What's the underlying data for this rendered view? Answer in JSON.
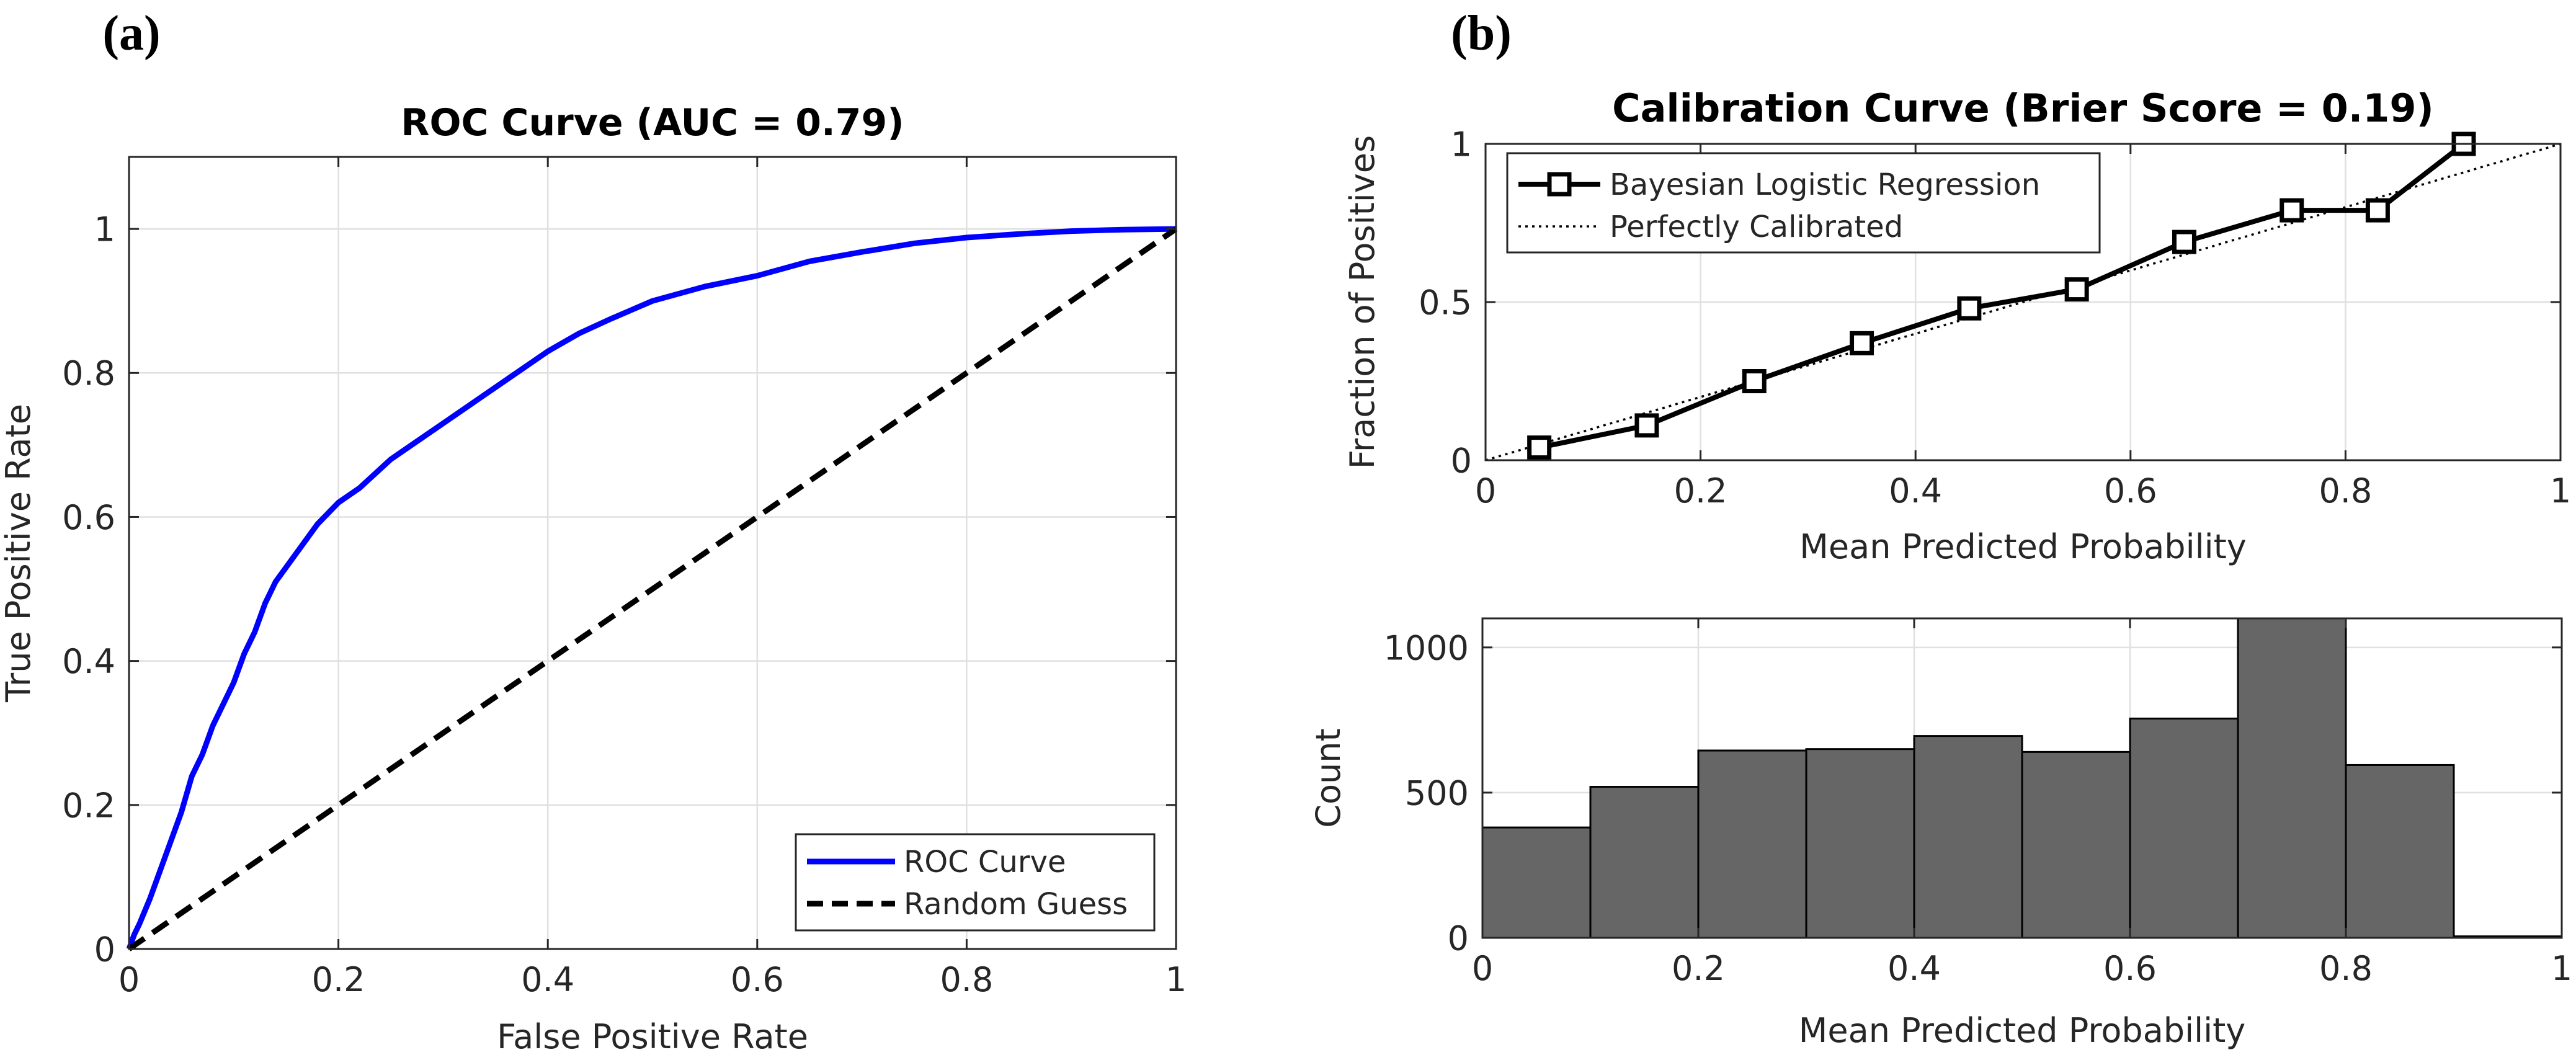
{
  "panels": {
    "a_label": "(a)",
    "b_label": "(b)"
  },
  "chart_data": [
    {
      "id": "roc",
      "type": "line",
      "title": "ROC Curve (AUC = 0.79)",
      "xlabel": "False Positive Rate",
      "ylabel": "True Positive Rate",
      "xlim": [
        0,
        1
      ],
      "ylim": [
        0,
        1.1
      ],
      "xticks": [
        0,
        0.2,
        0.4,
        0.6,
        0.8,
        1
      ],
      "yticks": [
        0,
        0.2,
        0.4,
        0.6,
        0.8,
        1
      ],
      "xtick_labels": [
        "0",
        "0.2",
        "0.4",
        "0.6",
        "0.8",
        "1"
      ],
      "ytick_labels": [
        "0",
        "0.2",
        "0.4",
        "0.6",
        "0.8",
        "1"
      ],
      "grid": true,
      "legend_position": "bottom-right",
      "series": [
        {
          "name": "ROC Curve",
          "color": "#0000ff",
          "style": "solid",
          "x": [
            0,
            0.005,
            0.01,
            0.02,
            0.03,
            0.04,
            0.05,
            0.06,
            0.07,
            0.08,
            0.09,
            0.1,
            0.11,
            0.12,
            0.13,
            0.14,
            0.15,
            0.16,
            0.18,
            0.2,
            0.22,
            0.25,
            0.28,
            0.3,
            0.33,
            0.36,
            0.4,
            0.43,
            0.46,
            0.5,
            0.55,
            0.6,
            0.65,
            0.7,
            0.75,
            0.8,
            0.85,
            0.9,
            0.95,
            1.0
          ],
          "y": [
            0,
            0.02,
            0.035,
            0.07,
            0.11,
            0.15,
            0.19,
            0.24,
            0.27,
            0.31,
            0.34,
            0.37,
            0.41,
            0.44,
            0.48,
            0.51,
            0.53,
            0.55,
            0.59,
            0.62,
            0.64,
            0.68,
            0.71,
            0.73,
            0.76,
            0.79,
            0.83,
            0.855,
            0.875,
            0.9,
            0.92,
            0.935,
            0.955,
            0.968,
            0.98,
            0.988,
            0.993,
            0.997,
            0.999,
            1.0
          ]
        },
        {
          "name": "Random Guess",
          "color": "#000000",
          "style": "dashed",
          "x": [
            0,
            1
          ],
          "y": [
            0,
            1
          ]
        }
      ]
    },
    {
      "id": "calibration",
      "type": "line",
      "title": "Calibration Curve (Brier Score = 0.19)",
      "xlabel": "Mean Predicted Probability",
      "ylabel": "Fraction of Positives",
      "xlim": [
        0,
        1
      ],
      "ylim": [
        0,
        1
      ],
      "xticks": [
        0,
        0.2,
        0.4,
        0.6,
        0.8,
        1
      ],
      "yticks": [
        0,
        0.5,
        1
      ],
      "xtick_labels": [
        "0",
        "0.2",
        "0.4",
        "0.6",
        "0.8",
        "1"
      ],
      "ytick_labels": [
        "0",
        "0.5",
        "1"
      ],
      "grid": true,
      "legend_position": "top-left",
      "series": [
        {
          "name": "Bayesian Logistic Regression",
          "color": "#000000",
          "style": "solid",
          "marker": "square",
          "x": [
            0.05,
            0.15,
            0.25,
            0.35,
            0.45,
            0.55,
            0.65,
            0.75,
            0.83,
            0.91
          ],
          "y": [
            0.04,
            0.11,
            0.25,
            0.37,
            0.48,
            0.54,
            0.69,
            0.79,
            0.79,
            1.0
          ]
        },
        {
          "name": "Perfectly Calibrated",
          "color": "#000000",
          "style": "dotted",
          "x": [
            0,
            1
          ],
          "y": [
            0,
            1
          ]
        }
      ]
    },
    {
      "id": "histogram",
      "type": "bar",
      "title": "",
      "xlabel": "Mean Predicted Probability",
      "ylabel": "Count",
      "xlim": [
        0,
        1
      ],
      "ylim": [
        0,
        1100
      ],
      "xticks": [
        0,
        0.2,
        0.4,
        0.6,
        0.8,
        1
      ],
      "yticks": [
        0,
        500,
        1000
      ],
      "xtick_labels": [
        "0",
        "0.2",
        "0.4",
        "0.6",
        "0.8",
        "1"
      ],
      "ytick_labels": [
        "0",
        "500",
        "1000"
      ],
      "grid": true,
      "bar_color": "#666666",
      "bin_edges": [
        0,
        0.1,
        0.2,
        0.3,
        0.4,
        0.5,
        0.6,
        0.7,
        0.8,
        0.9,
        1.0
      ],
      "values": [
        380,
        520,
        645,
        650,
        695,
        640,
        755,
        1100,
        595,
        5
      ]
    }
  ]
}
